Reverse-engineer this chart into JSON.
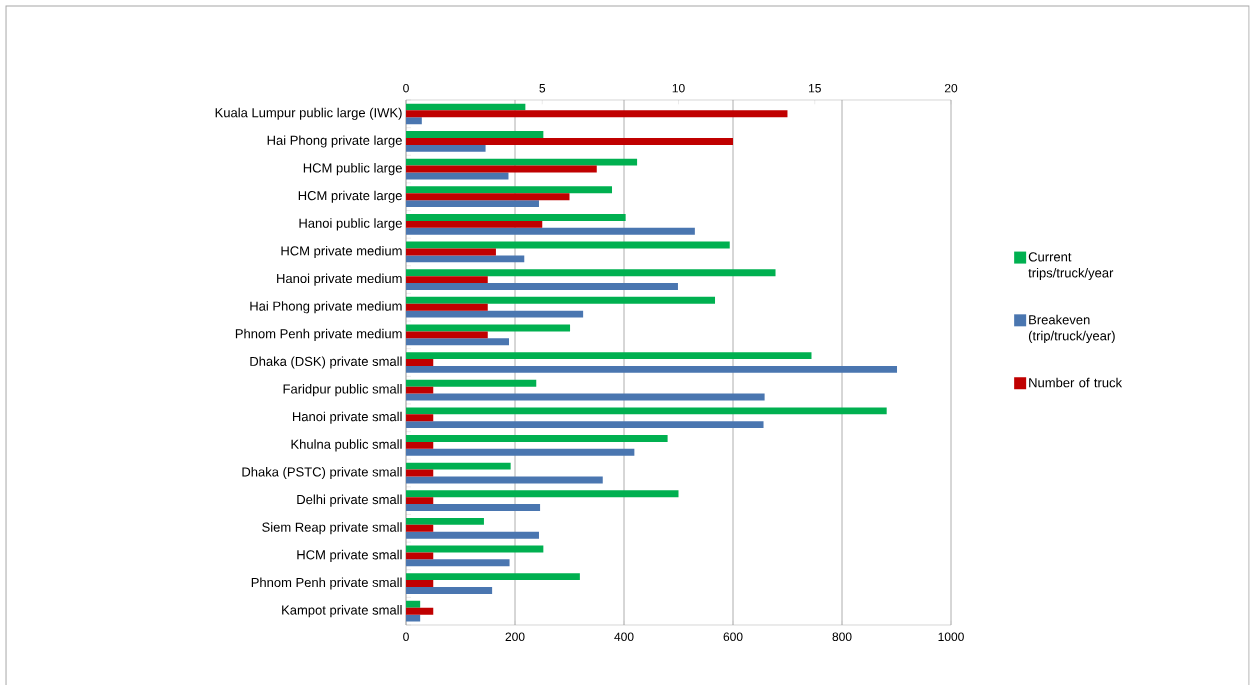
{
  "chart_data": {
    "type": "bar",
    "orientation": "horizontal",
    "categories": [
      "Kuala Lumpur public large (IWK)",
      "Hai Phong private large",
      "HCM public large",
      "HCM private large",
      "Hanoi public large",
      "HCM private medium",
      "Hanoi private medium",
      "Hai Phong private medium",
      "Phnom Penh private medium",
      "Dhaka (DSK) private small",
      "Faridpur public small",
      "Hanoi private small",
      "Khulna public small",
      "Dhaka (PSTC) private small",
      "Delhi private small",
      "Siem Reap private small",
      "HCM private small",
      "Phnom Penh private small",
      "Kampot private small"
    ],
    "series": [
      {
        "name": "Current trips/truck/year",
        "color": "#00b050",
        "values": [
          219,
          252,
          424,
          378,
          403,
          594,
          678,
          567,
          301,
          744,
          239,
          882,
          480,
          192,
          500,
          143,
          252,
          319,
          26
        ]
      },
      {
        "name": "Number of truck",
        "color": "#c00000",
        "axis": "x2",
        "values": [
          14,
          12,
          7,
          6,
          5,
          3.3,
          3,
          3,
          3,
          1,
          1,
          1,
          1,
          1,
          1,
          1,
          1,
          1,
          1
        ]
      },
      {
        "name": "Breakeven (trip/truck/year)",
        "color": "#4a76b0",
        "values": [
          29,
          146,
          188,
          244,
          530,
          217,
          499,
          325,
          189,
          901,
          658,
          656,
          419,
          361,
          246,
          244,
          190,
          158,
          26
        ]
      }
    ],
    "xlim": [
      0,
      1000
    ],
    "xticks": [
      0,
      200,
      400,
      600,
      800,
      1000
    ],
    "x2lim": [
      0,
      20
    ],
    "x2ticks": [
      0,
      5,
      10,
      15,
      20
    ],
    "grid": "x",
    "legend": "right"
  }
}
